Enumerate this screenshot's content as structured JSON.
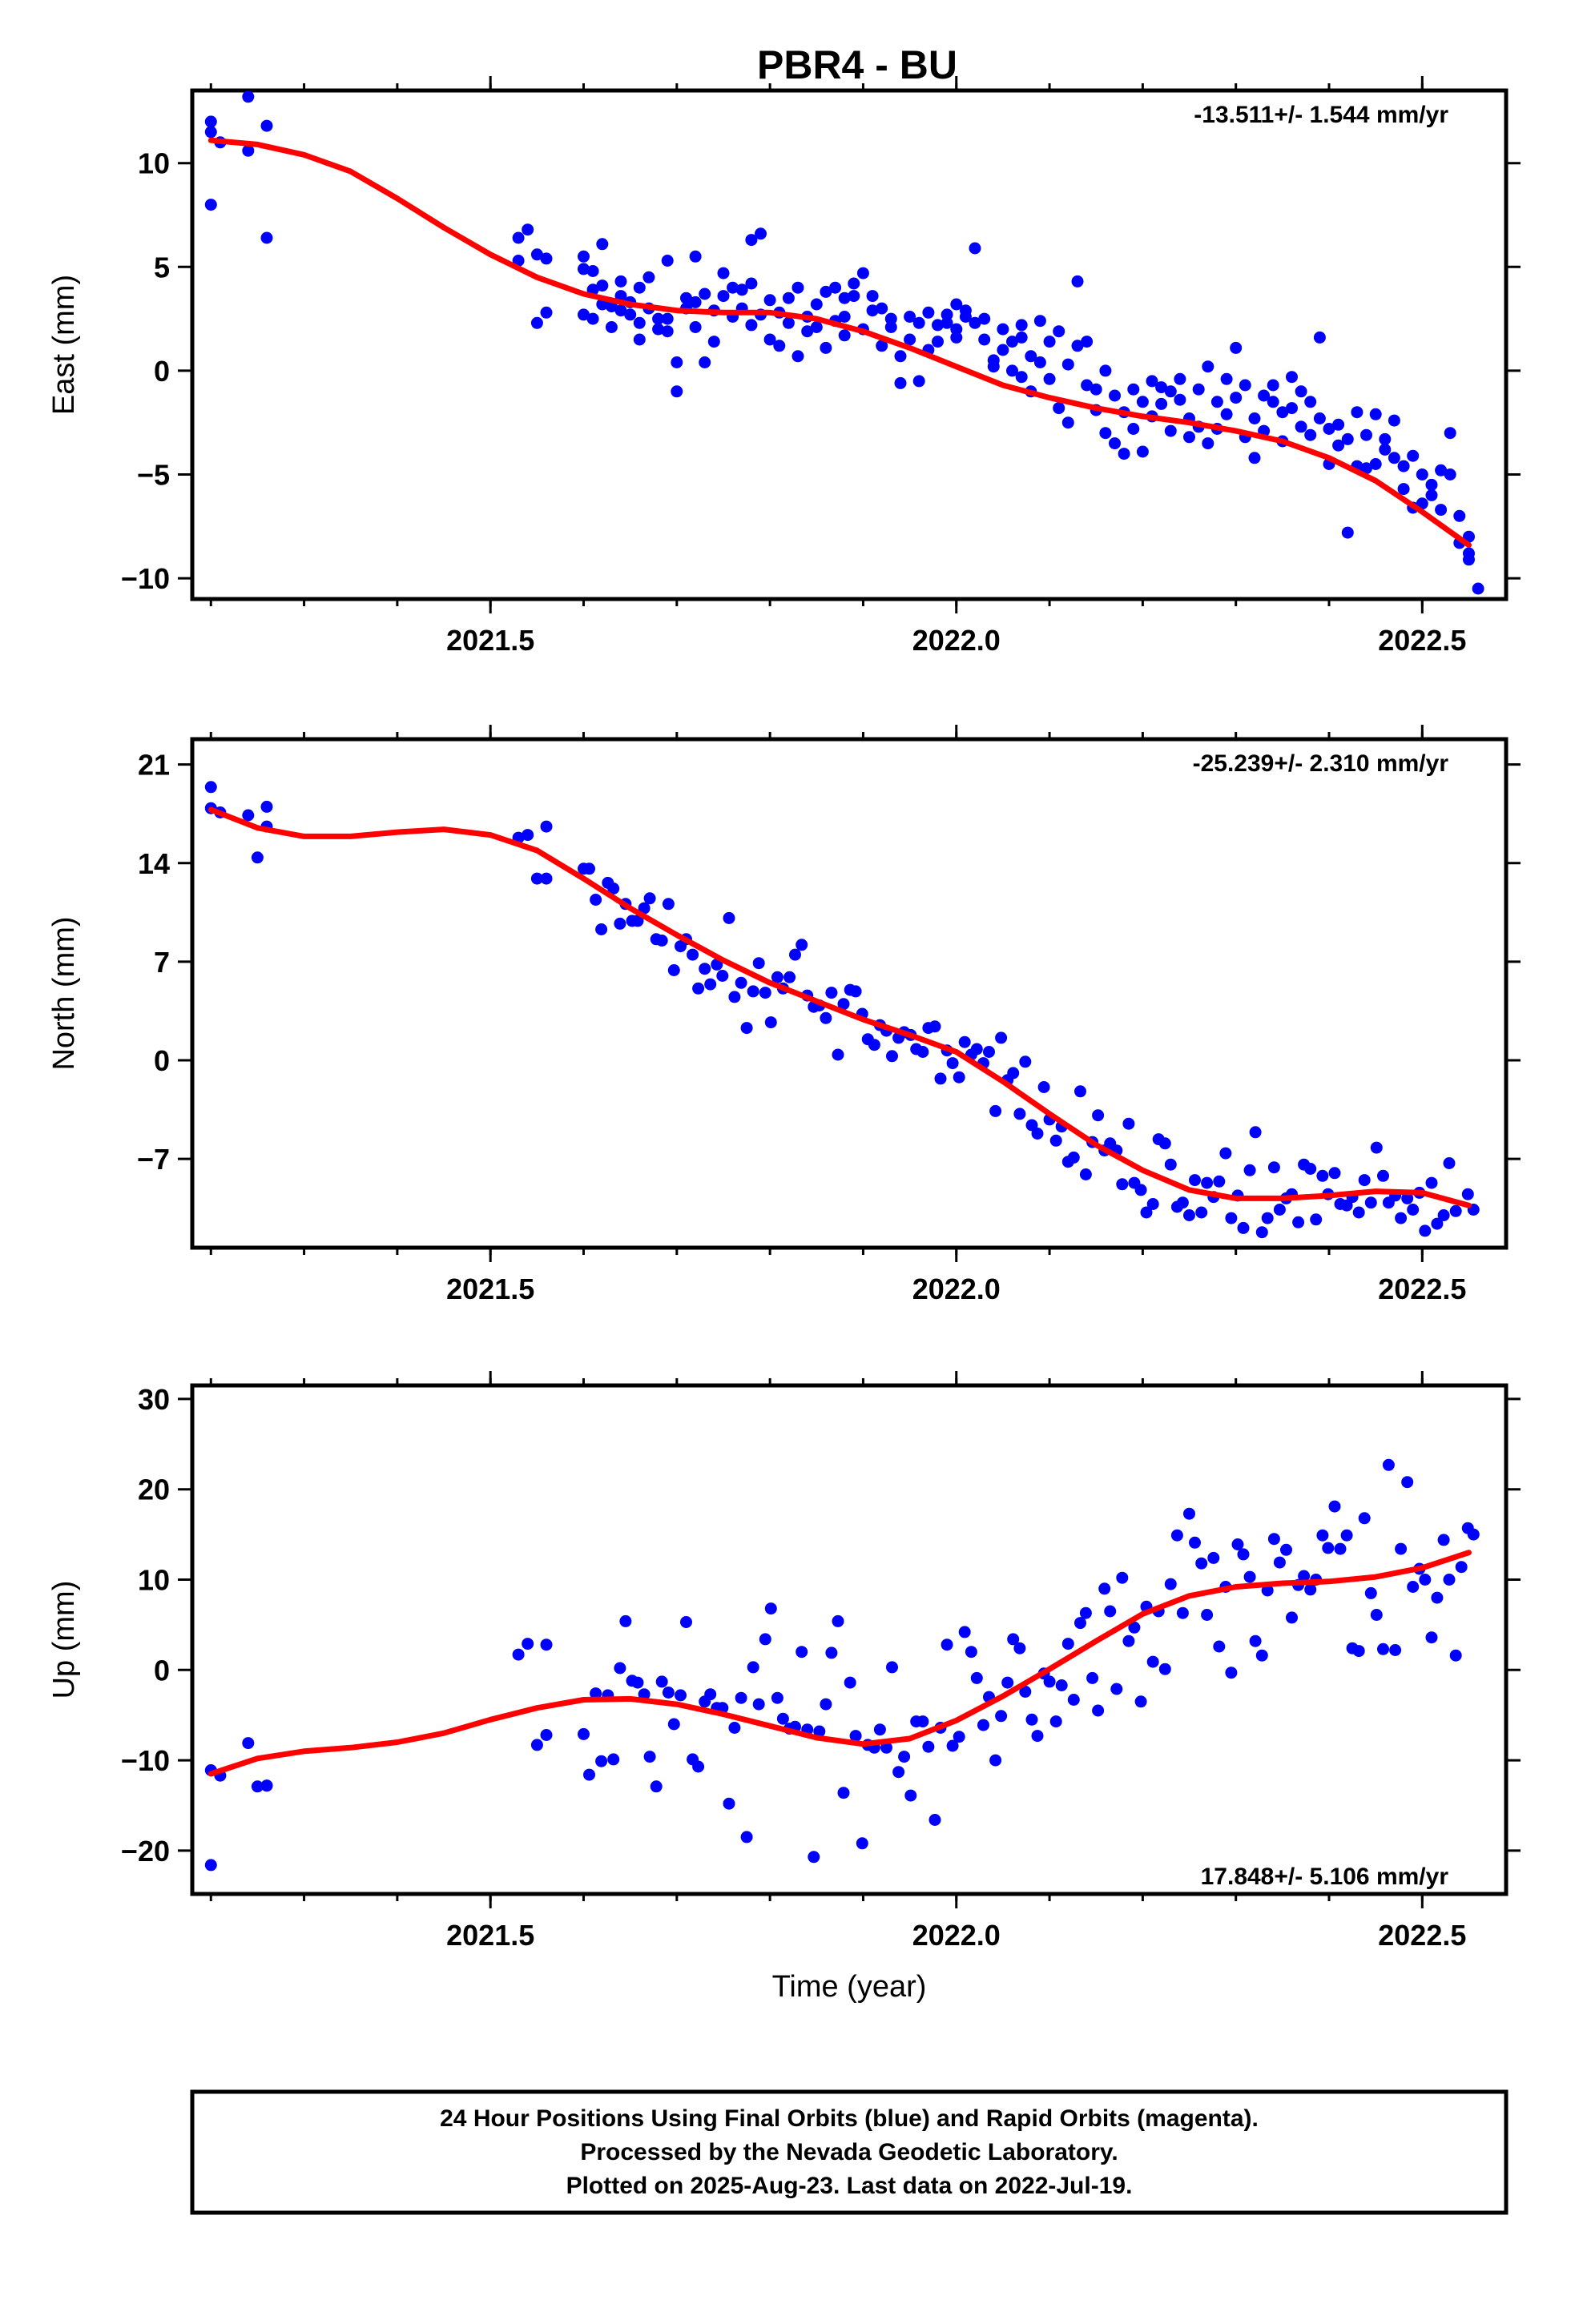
{
  "title": "PBR4 - BU",
  "footer": {
    "line1": "24 Hour Positions Using Final Orbits (blue) and Rapid Orbits (magenta).",
    "line2": "Processed by the Nevada Geodetic Laboratory.",
    "line3": "Plotted on 2025-Aug-23. Last data on 2022-Jul-19."
  },
  "colors": {
    "points": "#0000ff",
    "fit": "#ff0000",
    "frame": "#000000"
  },
  "chart_data": [
    {
      "type": "scatter",
      "component": "east",
      "ylabel": "East (mm)",
      "xlabel": "",
      "rate_text": "-13.511+/- 1.544 mm/yr",
      "rate_position": "top-right",
      "xlim": [
        2021.18,
        2022.59
      ],
      "ylim": [
        -11,
        13.5
      ],
      "xticks": [
        2021.5,
        2022.0,
        2022.5
      ],
      "xtick_labels": [
        "2021.5",
        "2022.0",
        "2022.5"
      ],
      "yticks": [
        -10,
        -5,
        0,
        5,
        10
      ],
      "ytick_labels": [
        "−10",
        "−5",
        "0",
        "5",
        "10"
      ],
      "fit_x": [
        2021.2,
        2021.25,
        2021.3,
        2021.35,
        2021.4,
        2021.45,
        2021.5,
        2021.55,
        2021.6,
        2021.65,
        2021.7,
        2021.75,
        2021.8,
        2021.85,
        2021.9,
        2021.95,
        2022.0,
        2022.05,
        2022.1,
        2022.15,
        2022.2,
        2022.25,
        2022.3,
        2022.35,
        2022.4,
        2022.45,
        2022.5,
        2022.55
      ],
      "fit_y": [
        11.1,
        10.9,
        10.4,
        9.6,
        8.3,
        6.9,
        5.6,
        4.5,
        3.7,
        3.2,
        2.9,
        2.8,
        2.8,
        2.5,
        1.9,
        1.1,
        0.2,
        -0.7,
        -1.3,
        -1.8,
        -2.2,
        -2.5,
        -2.9,
        -3.4,
        -4.2,
        -5.3,
        -6.8,
        -8.4
      ],
      "points": [
        [
          2021.2,
          8.0
        ],
        [
          2021.2,
          11.5
        ],
        [
          2021.2,
          12.0
        ],
        [
          2021.21,
          11.0
        ],
        [
          2021.24,
          13.2
        ],
        [
          2021.24,
          10.6
        ],
        [
          2021.26,
          6.4
        ],
        [
          2021.26,
          11.8
        ],
        [
          2021.53,
          5.3
        ],
        [
          2021.53,
          6.4
        ],
        [
          2021.54,
          6.8
        ],
        [
          2021.55,
          5.6
        ],
        [
          2021.55,
          2.3
        ],
        [
          2021.56,
          2.8
        ],
        [
          2021.56,
          5.4
        ],
        [
          2021.6,
          5.5
        ],
        [
          2021.6,
          4.9
        ],
        [
          2021.6,
          2.7
        ],
        [
          2021.61,
          3.9
        ],
        [
          2021.61,
          2.5
        ],
        [
          2021.61,
          4.8
        ],
        [
          2021.62,
          3.2
        ],
        [
          2021.62,
          4.1
        ],
        [
          2021.62,
          6.1
        ],
        [
          2021.63,
          3.1
        ],
        [
          2021.63,
          2.1
        ],
        [
          2021.64,
          4.3
        ],
        [
          2021.64,
          3.6
        ],
        [
          2021.64,
          2.9
        ],
        [
          2021.65,
          2.7
        ],
        [
          2021.65,
          3.3
        ],
        [
          2021.66,
          4.0
        ],
        [
          2021.66,
          2.3
        ],
        [
          2021.66,
          1.5
        ],
        [
          2021.67,
          4.5
        ],
        [
          2021.67,
          3.0
        ],
        [
          2021.68,
          2.5
        ],
        [
          2021.68,
          2.0
        ],
        [
          2021.69,
          5.3
        ],
        [
          2021.69,
          2.5
        ],
        [
          2021.69,
          1.9
        ],
        [
          2021.7,
          -1.0
        ],
        [
          2021.7,
          0.4
        ],
        [
          2021.71,
          3.5
        ],
        [
          2021.71,
          3.0
        ],
        [
          2021.72,
          5.5
        ],
        [
          2021.72,
          2.1
        ],
        [
          2021.72,
          3.3
        ],
        [
          2021.73,
          0.4
        ],
        [
          2021.73,
          3.7
        ],
        [
          2021.74,
          1.4
        ],
        [
          2021.74,
          2.9
        ],
        [
          2021.75,
          4.7
        ],
        [
          2021.75,
          3.6
        ],
        [
          2021.76,
          2.6
        ],
        [
          2021.76,
          4.0
        ],
        [
          2021.77,
          3.9
        ],
        [
          2021.77,
          3.0
        ],
        [
          2021.78,
          6.3
        ],
        [
          2021.78,
          2.2
        ],
        [
          2021.78,
          4.2
        ],
        [
          2021.79,
          6.6
        ],
        [
          2021.79,
          2.7
        ],
        [
          2021.8,
          1.5
        ],
        [
          2021.8,
          3.4
        ],
        [
          2021.81,
          1.2
        ],
        [
          2021.81,
          2.8
        ],
        [
          2021.82,
          2.3
        ],
        [
          2021.82,
          3.5
        ],
        [
          2021.83,
          0.7
        ],
        [
          2021.83,
          4.0
        ],
        [
          2021.84,
          2.6
        ],
        [
          2021.84,
          1.9
        ],
        [
          2021.85,
          3.2
        ],
        [
          2021.85,
          2.1
        ],
        [
          2021.86,
          1.1
        ],
        [
          2021.86,
          3.8
        ],
        [
          2021.87,
          2.4
        ],
        [
          2021.87,
          4.0
        ],
        [
          2021.88,
          3.5
        ],
        [
          2021.88,
          1.7
        ],
        [
          2021.88,
          2.6
        ],
        [
          2021.89,
          4.2
        ],
        [
          2021.89,
          3.6
        ],
        [
          2021.9,
          4.7
        ],
        [
          2021.9,
          2.0
        ],
        [
          2021.91,
          2.9
        ],
        [
          2021.91,
          3.6
        ],
        [
          2021.92,
          1.2
        ],
        [
          2021.92,
          3.0
        ],
        [
          2021.93,
          2.1
        ],
        [
          2021.93,
          2.5
        ],
        [
          2021.94,
          0.7
        ],
        [
          2021.94,
          -0.6
        ],
        [
          2021.95,
          2.6
        ],
        [
          2021.95,
          1.5
        ],
        [
          2021.96,
          -0.5
        ],
        [
          2021.96,
          2.3
        ],
        [
          2021.97,
          1.0
        ],
        [
          2021.97,
          2.8
        ],
        [
          2021.98,
          2.2
        ],
        [
          2021.98,
          1.4
        ],
        [
          2021.99,
          2.3
        ],
        [
          2021.99,
          2.7
        ],
        [
          2022.0,
          2.0
        ],
        [
          2022.0,
          3.2
        ],
        [
          2022.0,
          1.6
        ],
        [
          2022.01,
          2.9
        ],
        [
          2022.01,
          2.6
        ],
        [
          2022.02,
          2.3
        ],
        [
          2022.02,
          5.9
        ],
        [
          2022.03,
          2.5
        ],
        [
          2022.03,
          1.5
        ],
        [
          2022.04,
          0.5
        ],
        [
          2022.04,
          0.2
        ],
        [
          2022.05,
          1.0
        ],
        [
          2022.05,
          2.0
        ],
        [
          2022.06,
          1.4
        ],
        [
          2022.06,
          0.0
        ],
        [
          2022.07,
          -0.3
        ],
        [
          2022.07,
          1.6
        ],
        [
          2022.07,
          2.2
        ],
        [
          2022.08,
          0.7
        ],
        [
          2022.08,
          -1.0
        ],
        [
          2022.09,
          2.4
        ],
        [
          2022.09,
          0.4
        ],
        [
          2022.1,
          1.4
        ],
        [
          2022.1,
          -0.4
        ],
        [
          2022.11,
          1.9
        ],
        [
          2022.11,
          -1.8
        ],
        [
          2022.12,
          0.3
        ],
        [
          2022.12,
          -2.5
        ],
        [
          2022.13,
          4.3
        ],
        [
          2022.13,
          1.2
        ],
        [
          2022.14,
          1.4
        ],
        [
          2022.14,
          -0.7
        ],
        [
          2022.15,
          -1.9
        ],
        [
          2022.15,
          -0.9
        ],
        [
          2022.16,
          -3.0
        ],
        [
          2022.16,
          0.0
        ],
        [
          2022.17,
          -1.2
        ],
        [
          2022.17,
          -3.5
        ],
        [
          2022.18,
          -2.0
        ],
        [
          2022.18,
          -4.0
        ],
        [
          2022.19,
          -0.9
        ],
        [
          2022.19,
          -2.8
        ],
        [
          2022.2,
          -1.5
        ],
        [
          2022.2,
          -3.9
        ],
        [
          2022.21,
          -0.5
        ],
        [
          2022.21,
          -2.2
        ],
        [
          2022.22,
          -1.6
        ],
        [
          2022.22,
          -0.8
        ],
        [
          2022.23,
          -2.9
        ],
        [
          2022.23,
          -1.0
        ],
        [
          2022.24,
          -1.4
        ],
        [
          2022.24,
          -0.4
        ],
        [
          2022.25,
          -3.2
        ],
        [
          2022.25,
          -2.3
        ],
        [
          2022.26,
          -0.9
        ],
        [
          2022.26,
          -2.7
        ],
        [
          2022.27,
          0.2
        ],
        [
          2022.27,
          -3.5
        ],
        [
          2022.28,
          -1.5
        ],
        [
          2022.28,
          -2.8
        ],
        [
          2022.29,
          -0.4
        ],
        [
          2022.29,
          -2.1
        ],
        [
          2022.3,
          1.1
        ],
        [
          2022.3,
          -1.3
        ],
        [
          2022.31,
          -3.2
        ],
        [
          2022.31,
          -0.7
        ],
        [
          2022.32,
          -2.3
        ],
        [
          2022.32,
          -4.2
        ],
        [
          2022.33,
          -1.2
        ],
        [
          2022.33,
          -2.9
        ],
        [
          2022.34,
          -0.7
        ],
        [
          2022.34,
          -1.5
        ],
        [
          2022.35,
          -3.4
        ],
        [
          2022.35,
          -2.0
        ],
        [
          2022.36,
          -0.3
        ],
        [
          2022.36,
          -1.8
        ],
        [
          2022.37,
          -2.7
        ],
        [
          2022.37,
          -1.0
        ],
        [
          2022.38,
          -3.1
        ],
        [
          2022.38,
          -1.5
        ],
        [
          2022.39,
          1.6
        ],
        [
          2022.39,
          -2.3
        ],
        [
          2022.4,
          -2.8
        ],
        [
          2022.4,
          -4.5
        ],
        [
          2022.41,
          -3.6
        ],
        [
          2022.41,
          -2.6
        ],
        [
          2022.42,
          -7.8
        ],
        [
          2022.42,
          -3.3
        ],
        [
          2022.43,
          -4.6
        ],
        [
          2022.43,
          -2.0
        ],
        [
          2022.44,
          -4.7
        ],
        [
          2022.44,
          -3.1
        ],
        [
          2022.45,
          -4.5
        ],
        [
          2022.45,
          -2.1
        ],
        [
          2022.46,
          -3.8
        ],
        [
          2022.46,
          -3.3
        ],
        [
          2022.47,
          -2.4
        ],
        [
          2022.47,
          -4.2
        ],
        [
          2022.48,
          -4.6
        ],
        [
          2022.48,
          -5.7
        ],
        [
          2022.49,
          -4.1
        ],
        [
          2022.49,
          -6.6
        ],
        [
          2022.5,
          -5.0
        ],
        [
          2022.5,
          -6.4
        ],
        [
          2022.51,
          -6.0
        ],
        [
          2022.51,
          -5.5
        ],
        [
          2022.52,
          -6.7
        ],
        [
          2022.52,
          -4.8
        ],
        [
          2022.53,
          -5.0
        ],
        [
          2022.53,
          -3.0
        ],
        [
          2022.54,
          -7.0
        ],
        [
          2022.54,
          -8.3
        ],
        [
          2022.55,
          -8.8
        ],
        [
          2022.55,
          -9.1
        ],
        [
          2022.55,
          -8.0
        ],
        [
          2022.56,
          -10.5
        ]
      ]
    },
    {
      "type": "scatter",
      "component": "north",
      "ylabel": "North (mm)",
      "xlabel": "",
      "rate_text": "-25.239+/- 2.310 mm/yr",
      "rate_position": "top-right",
      "xlim": [
        2021.18,
        2022.59
      ],
      "ylim": [
        -13.3,
        22.8
      ],
      "xticks": [
        2021.5,
        2022.0,
        2022.5
      ],
      "xtick_labels": [
        "2021.5",
        "2022.0",
        "2022.5"
      ],
      "yticks": [
        -7,
        0,
        7,
        14,
        21
      ],
      "ytick_labels": [
        "−7",
        "0",
        "7",
        "14",
        "21"
      ],
      "fit_x": [
        2021.2,
        2021.25,
        2021.3,
        2021.35,
        2021.4,
        2021.45,
        2021.5,
        2021.55,
        2021.6,
        2021.65,
        2021.7,
        2021.75,
        2021.8,
        2021.85,
        2021.9,
        2021.95,
        2022.0,
        2022.05,
        2022.1,
        2022.15,
        2022.2,
        2022.25,
        2022.3,
        2022.35,
        2022.4,
        2022.45,
        2022.5,
        2022.55
      ],
      "fit_y": [
        17.8,
        16.5,
        15.9,
        15.9,
        16.2,
        16.4,
        16.0,
        14.9,
        12.9,
        10.8,
        8.9,
        7.1,
        5.5,
        4.2,
        2.9,
        1.8,
        0.6,
        -1.5,
        -3.8,
        -6.0,
        -7.8,
        -9.2,
        -9.8,
        -9.8,
        -9.6,
        -9.3,
        -9.4,
        -10.3
      ]
    },
    {
      "type": "scatter",
      "component": "up",
      "ylabel": "Up (mm)",
      "xlabel": "Time (year)",
      "rate_text": "17.848+/- 5.106 mm/yr",
      "rate_position": "bottom-right",
      "xlim": [
        2021.18,
        2022.59
      ],
      "ylim": [
        -24.8,
        31.5
      ],
      "xticks": [
        2021.5,
        2022.0,
        2022.5
      ],
      "xtick_labels": [
        "2021.5",
        "2022.0",
        "2022.5"
      ],
      "yticks": [
        -20,
        -10,
        0,
        10,
        20,
        30
      ],
      "ytick_labels": [
        "−20",
        "−10",
        "0",
        "10",
        "20",
        "30"
      ],
      "fit_x": [
        2021.2,
        2021.25,
        2021.3,
        2021.35,
        2021.4,
        2021.45,
        2021.5,
        2021.55,
        2021.6,
        2021.65,
        2021.7,
        2021.75,
        2021.8,
        2021.85,
        2021.9,
        2021.95,
        2022.0,
        2022.05,
        2022.1,
        2022.15,
        2022.2,
        2022.25,
        2022.3,
        2022.35,
        2022.4,
        2022.45,
        2022.5,
        2022.55
      ],
      "fit_y": [
        -11.5,
        -9.8,
        -9.0,
        -8.6,
        -8.0,
        -7.0,
        -5.5,
        -4.2,
        -3.3,
        -3.2,
        -3.8,
        -4.9,
        -6.2,
        -7.5,
        -8.2,
        -7.6,
        -5.6,
        -2.9,
        0.1,
        3.2,
        6.2,
        8.2,
        9.2,
        9.6,
        9.8,
        10.3,
        11.3,
        13.0
      ]
    }
  ]
}
